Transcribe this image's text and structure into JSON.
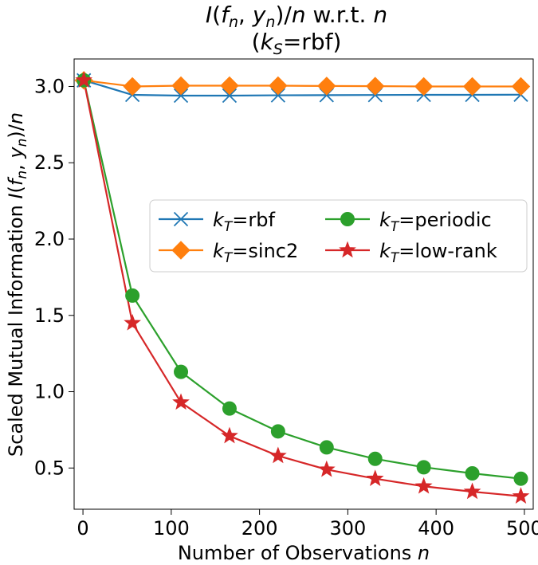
{
  "chart_data": {
    "type": "line",
    "title_line1": "I(f_n, y_n)/n w.r.t. n",
    "title_line2": "(k_S=rbf)",
    "xlabel": "Number of Observations n",
    "ylabel": "Scaled Mutual Information I(f_n, y_n)/n",
    "xlim": [
      -10,
      510
    ],
    "ylim": [
      0.23,
      3.18
    ],
    "x_ticks": [
      0,
      100,
      200,
      300,
      400,
      500
    ],
    "x_tick_labels": [
      "0",
      "100",
      "200",
      "300",
      "400",
      "500"
    ],
    "y_ticks": [
      0.5,
      1.0,
      1.5,
      2.0,
      2.5,
      3.0
    ],
    "y_tick_labels": [
      "0.5",
      "1.0",
      "1.5",
      "2.0",
      "2.5",
      "3.0"
    ],
    "x": [
      1,
      56,
      111,
      166,
      221,
      276,
      331,
      386,
      441,
      496
    ],
    "legend_position": "center-right",
    "series": [
      {
        "name": "k_T=rbf",
        "legend_main": "k",
        "legend_sub": "T",
        "legend_suffix": "=rbf",
        "color": "#1f77b4",
        "marker": "x",
        "values": [
          3.04,
          2.945,
          2.94,
          2.94,
          2.942,
          2.943,
          2.944,
          2.945,
          2.945,
          2.946
        ]
      },
      {
        "name": "k_T=sinc2",
        "legend_main": "k",
        "legend_sub": "T",
        "legend_suffix": "=sinc2",
        "color": "#ff7f0e",
        "marker": "diamond",
        "values": [
          3.04,
          3.0,
          3.005,
          3.005,
          3.005,
          3.003,
          3.002,
          3.0,
          3.0,
          3.0
        ]
      },
      {
        "name": "k_T=periodic",
        "legend_main": "k",
        "legend_sub": "T",
        "legend_suffix": "=periodic",
        "color": "#2ca02c",
        "marker": "circle",
        "values": [
          3.04,
          1.63,
          1.13,
          0.89,
          0.74,
          0.635,
          0.56,
          0.505,
          0.465,
          0.43
        ]
      },
      {
        "name": "k_T=low-rank",
        "legend_main": "k",
        "legend_sub": "T",
        "legend_suffix": "=low-rank",
        "color": "#d62728",
        "marker": "star",
        "values": [
          3.04,
          1.45,
          0.93,
          0.71,
          0.58,
          0.49,
          0.43,
          0.38,
          0.345,
          0.315
        ]
      }
    ]
  }
}
